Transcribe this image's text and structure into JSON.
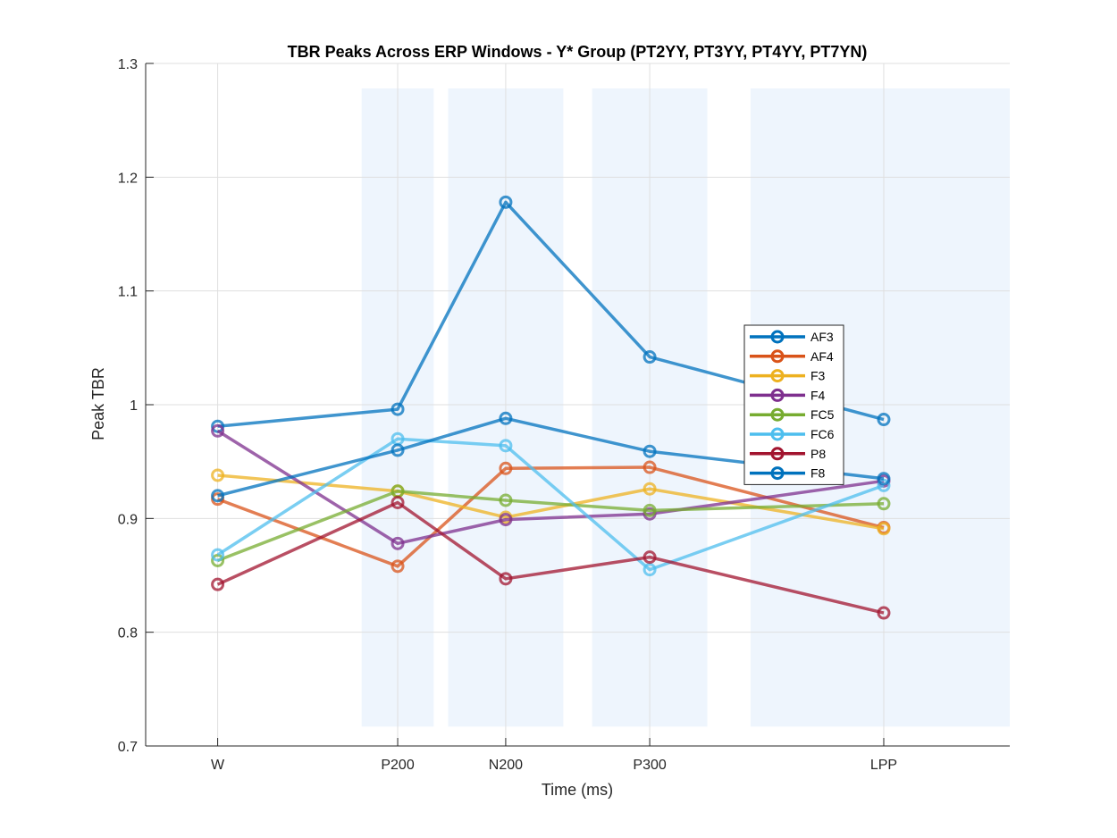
{
  "chart_data": {
    "type": "line",
    "title": "TBR Peaks Across ERP Windows - Y* Group (PT2YY, PT3YY, PT4YY, PT7YN)",
    "xlabel": "Time (ms)",
    "ylabel": "Peak TBR",
    "categories": [
      "W",
      "P200",
      "N200",
      "P300",
      "LPP"
    ],
    "x": [
      0,
      200,
      320,
      480,
      740
    ],
    "xlim": [
      -80,
      880
    ],
    "ylim": [
      0.7,
      1.3
    ],
    "yticks": [
      0.7,
      0.8,
      0.9,
      1.0,
      1.1,
      1.2,
      1.3
    ],
    "ytick_labels": [
      "0.7",
      "0.8",
      "0.9",
      "1",
      "1.1",
      "1.2",
      "1.3"
    ],
    "grid": true,
    "legend_position": "right",
    "shaded_windows": [
      [
        160,
        240
      ],
      [
        256,
        384
      ],
      [
        416,
        544
      ],
      [
        592,
        880
      ]
    ],
    "shade_ylim": [
      0.717,
      1.278
    ],
    "shade_color": "#eef5fd",
    "series": [
      {
        "name": "AF3",
        "color": "#0072BD",
        "values": [
          0.981,
          0.996,
          1.178,
          1.042,
          0.987
        ]
      },
      {
        "name": "AF4",
        "color": "#D95319",
        "values": [
          0.917,
          0.858,
          0.944,
          0.945,
          0.892
        ]
      },
      {
        "name": "F3",
        "color": "#EDB120",
        "values": [
          0.938,
          0.924,
          0.901,
          0.926,
          0.891
        ]
      },
      {
        "name": "F4",
        "color": "#7E2F8E",
        "values": [
          0.977,
          0.878,
          0.899,
          0.904,
          0.933
        ]
      },
      {
        "name": "FC5",
        "color": "#77AC30",
        "values": [
          0.863,
          0.924,
          0.916,
          0.907,
          0.913
        ]
      },
      {
        "name": "FC6",
        "color": "#4DBEEE",
        "values": [
          0.868,
          0.97,
          0.964,
          0.855,
          0.929
        ]
      },
      {
        "name": "P8",
        "color": "#A2142F",
        "values": [
          0.842,
          0.914,
          0.847,
          0.866,
          0.817
        ]
      },
      {
        "name": "F8",
        "color": "#0072BD",
        "values": [
          0.92,
          0.96,
          0.988,
          0.959,
          0.935
        ]
      }
    ]
  }
}
